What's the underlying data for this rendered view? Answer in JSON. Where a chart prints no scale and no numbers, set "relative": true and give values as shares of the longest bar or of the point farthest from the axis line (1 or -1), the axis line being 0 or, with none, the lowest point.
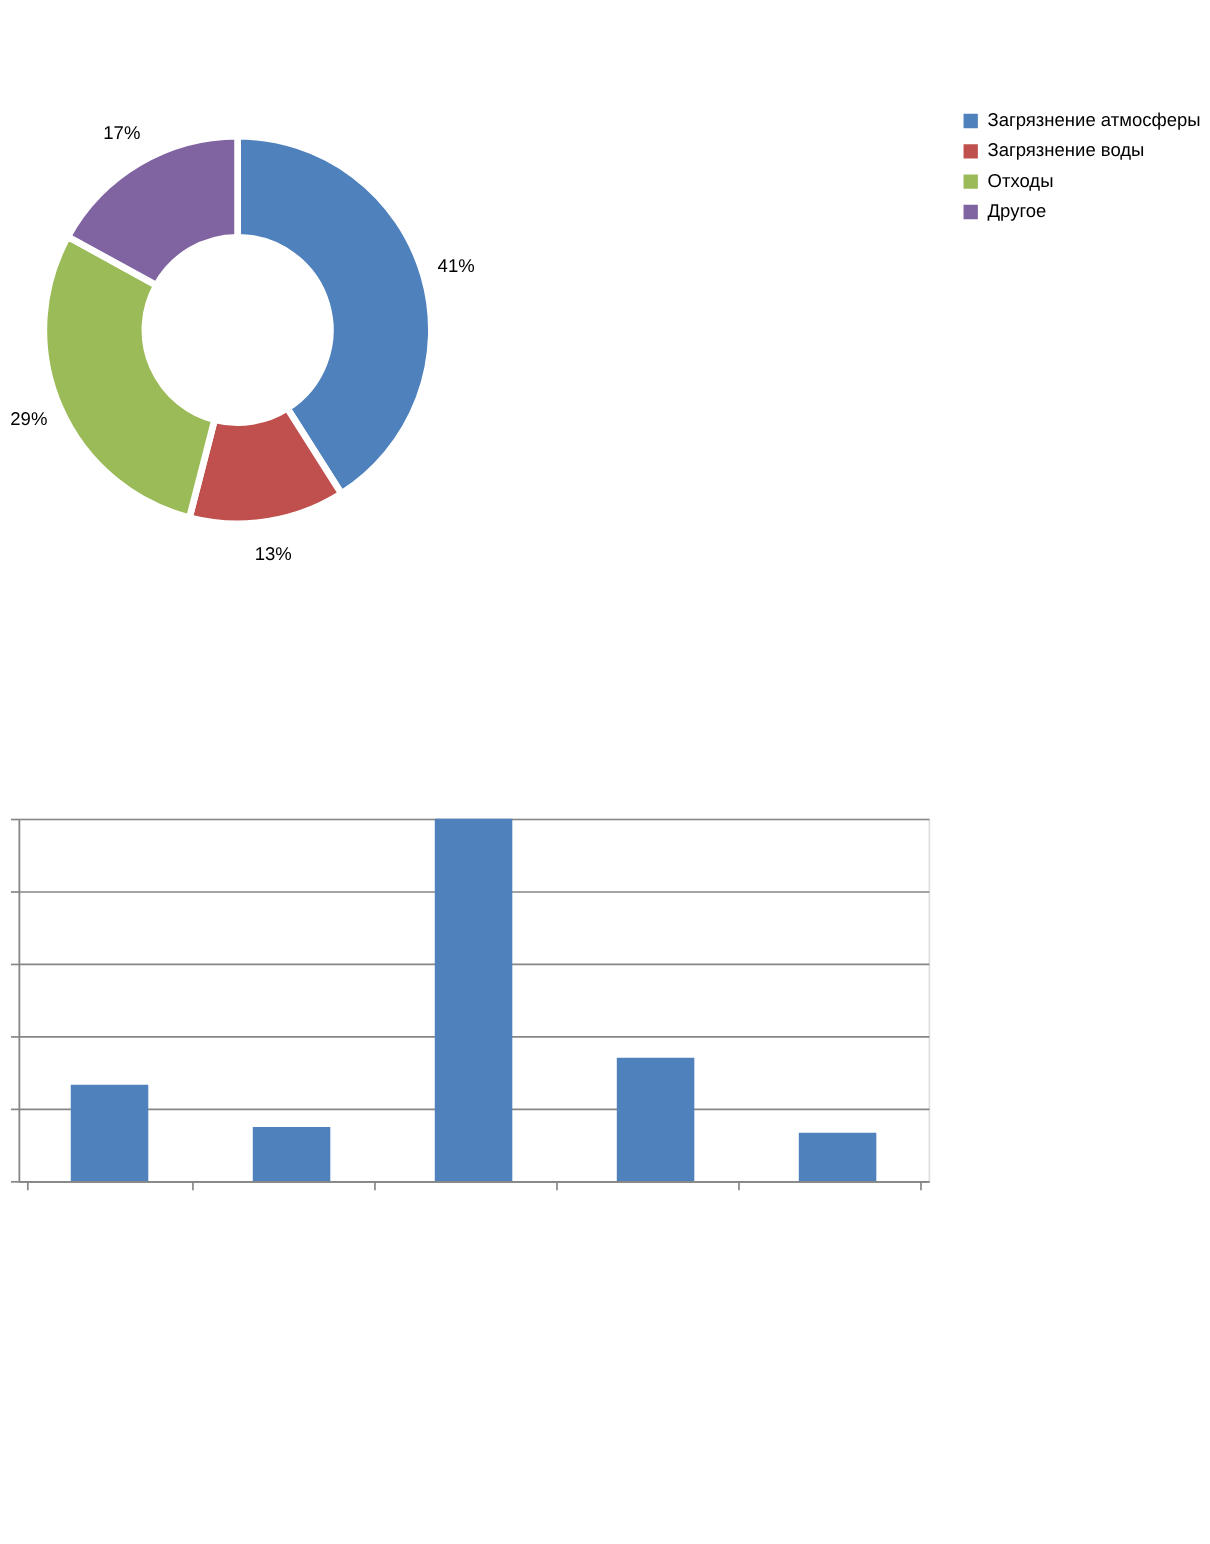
{
  "chart_data": [
    {
      "type": "donut",
      "categories": [
        "Загрязнение атмосферы",
        "Загрязнение воды",
        "Отходы",
        "Другое"
      ],
      "values": [
        41,
        13,
        29,
        17
      ],
      "colors": [
        "#4f81bd",
        "#c0504d",
        "#9bbb59",
        "#8064a2"
      ],
      "value_labels": [
        "41%",
        "13%",
        "29%",
        "17%"
      ],
      "legend": "right"
    },
    {
      "type": "bar",
      "categories": [
        null,
        null,
        null,
        null,
        null
      ],
      "values": [
        0.266,
        0.149,
        1,
        0.34,
        0.133
      ],
      "color": "#4f81bd",
      "relative": true,
      "grid": "y",
      "tick_labels": false
    }
  ]
}
